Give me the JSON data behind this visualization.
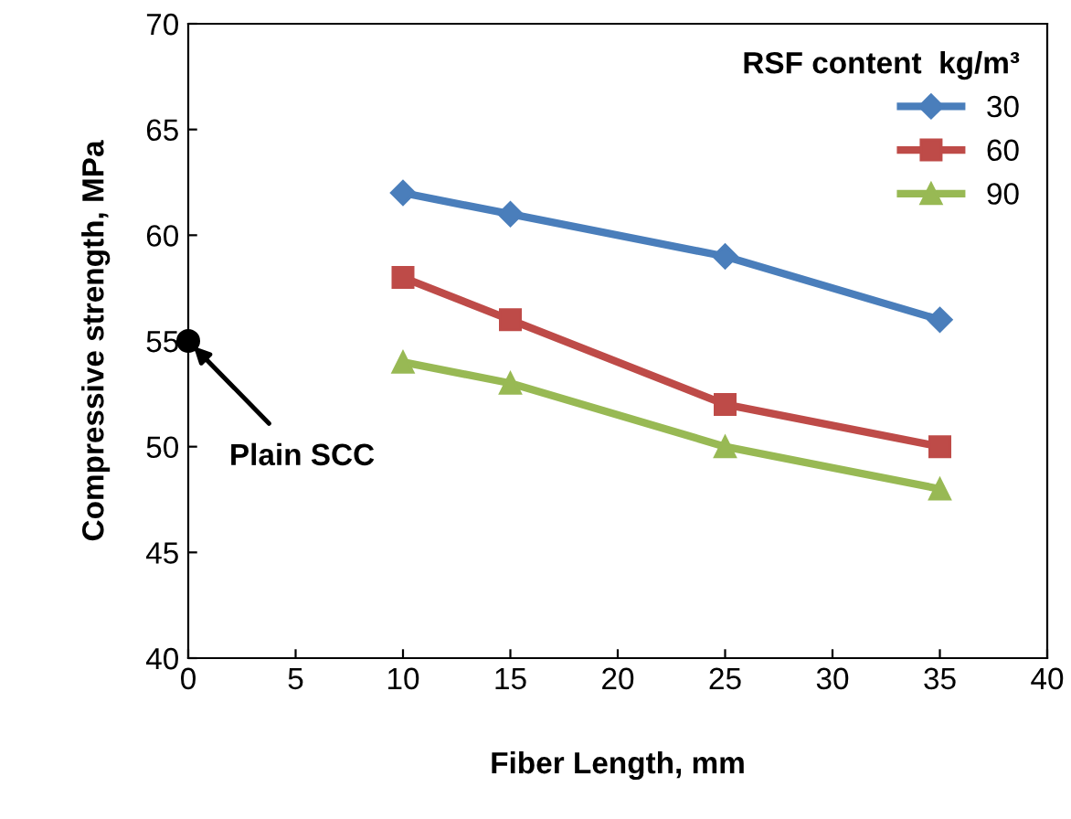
{
  "chart_data": {
    "type": "line",
    "xlabel": "Fiber Length, mm",
    "ylabel": "Compressive strength, MPa",
    "legend_title": "RSF content  kg/m³",
    "x": [
      10,
      15,
      25,
      35
    ],
    "series": [
      {
        "name": "30",
        "color": "#4a7ebb",
        "marker": "diamond",
        "values": [
          62,
          61,
          59,
          56
        ]
      },
      {
        "name": "60",
        "color": "#be4b48",
        "marker": "square",
        "values": [
          58,
          56,
          52,
          50
        ]
      },
      {
        "name": "90",
        "color": "#98b954",
        "marker": "triangle",
        "values": [
          54,
          53,
          50,
          48
        ]
      },
      {
        "type": "scatter",
        "color": "#000000",
        "marker": "circle",
        "x": [
          0
        ],
        "values": [
          55
        ]
      }
    ],
    "annotations": [
      {
        "text": "Plain SCC",
        "x": 0,
        "y": 55
      }
    ],
    "xlim": [
      0,
      40
    ],
    "xticks": [
      0,
      5,
      10,
      15,
      20,
      25,
      30,
      35,
      40
    ],
    "ylim": [
      40,
      70
    ],
    "yticks": [
      40,
      45,
      50,
      55,
      60,
      65,
      70
    ],
    "grid": false,
    "legend": "top right",
    "line_style": "solid"
  }
}
